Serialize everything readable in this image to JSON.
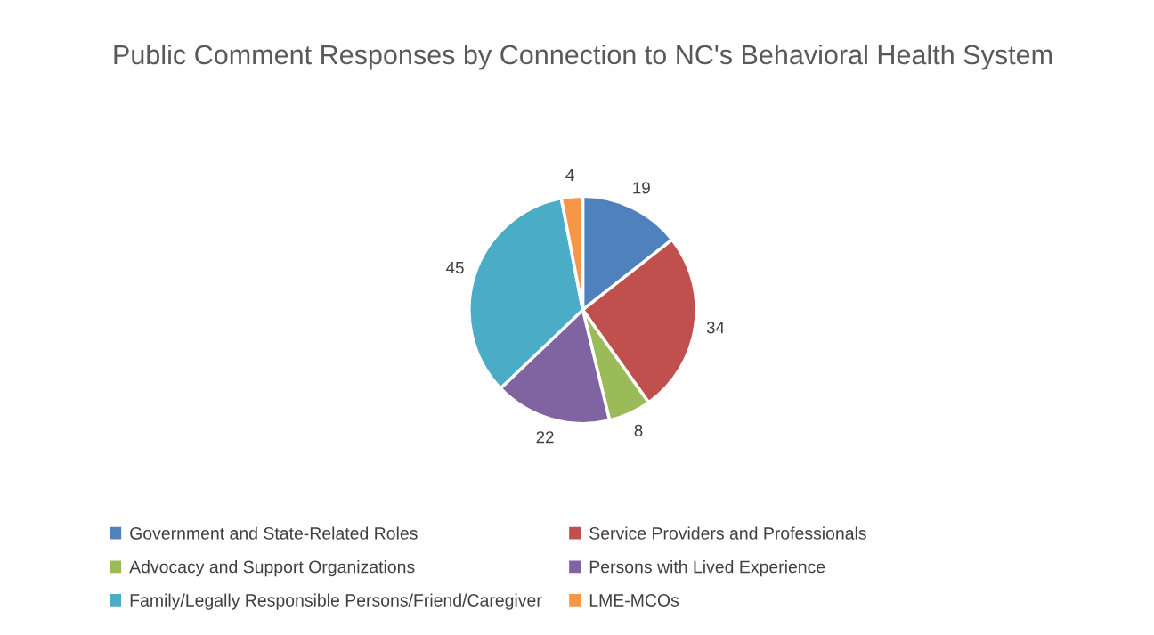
{
  "chart_data": {
    "type": "pie",
    "title": "Public Comment Responses by Connection to NC's Behavioral Health System",
    "categories": [
      "Government and State-Related Roles",
      "Service Providers and Professionals",
      "Advocacy and Support Organizations",
      "Persons with Lived Experience",
      "Family/Legally Responsible Persons/Friend/Caregiver",
      "LME-MCOs"
    ],
    "values": [
      19,
      34,
      8,
      22,
      45,
      4
    ],
    "colors": [
      "#4f81bd",
      "#c0504d",
      "#9bbb59",
      "#8064a2",
      "#4bacc6",
      "#f79646"
    ],
    "data_labels": true,
    "legend": "bottom"
  }
}
